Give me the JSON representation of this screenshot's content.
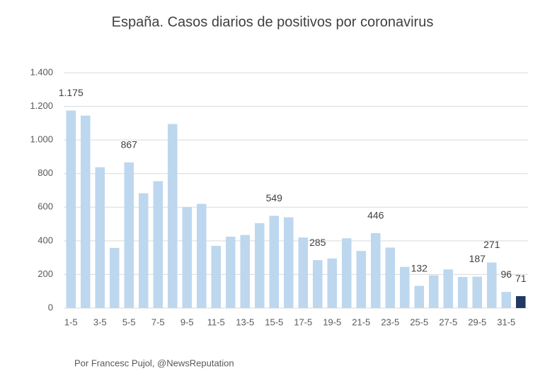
{
  "chart_data": {
    "type": "bar",
    "title": "España. Casos diarios de positivos por coronavirus",
    "footer": "Por Francesc Pujol, @NewsReputation",
    "categories": [
      "1-5",
      null,
      "3-5",
      null,
      "5-5",
      null,
      "7-5",
      null,
      "9-5",
      null,
      "11-5",
      null,
      "13-5",
      null,
      "15-5",
      null,
      "17-5",
      null,
      "19-5",
      null,
      "21-5",
      null,
      "23-5",
      null,
      "25-5",
      null,
      "27-5",
      null,
      "29-5",
      null,
      "31-5",
      null
    ],
    "values": [
      1175,
      1145,
      838,
      358,
      867,
      683,
      755,
      1095,
      600,
      620,
      370,
      425,
      435,
      505,
      549,
      540,
      420,
      285,
      295,
      415,
      340,
      446,
      360,
      245,
      132,
      195,
      230,
      185,
      187,
      271,
      96,
      71
    ],
    "value_labels": [
      "1.175",
      null,
      null,
      null,
      "867",
      null,
      null,
      null,
      null,
      null,
      null,
      null,
      null,
      null,
      "549",
      null,
      null,
      "285",
      null,
      null,
      null,
      "446",
      null,
      null,
      "132",
      null,
      null,
      null,
      "187",
      "271",
      "96",
      "71"
    ],
    "colors": [
      "#bdd7ee",
      "#bdd7ee",
      "#bdd7ee",
      "#bdd7ee",
      "#bdd7ee",
      "#bdd7ee",
      "#bdd7ee",
      "#bdd7ee",
      "#bdd7ee",
      "#bdd7ee",
      "#bdd7ee",
      "#bdd7ee",
      "#bdd7ee",
      "#bdd7ee",
      "#bdd7ee",
      "#bdd7ee",
      "#bdd7ee",
      "#bdd7ee",
      "#bdd7ee",
      "#bdd7ee",
      "#bdd7ee",
      "#bdd7ee",
      "#bdd7ee",
      "#bdd7ee",
      "#bdd7ee",
      "#bdd7ee",
      "#bdd7ee",
      "#bdd7ee",
      "#bdd7ee",
      "#bdd7ee",
      "#bdd7ee",
      "#1f3864"
    ],
    "ylim": [
      0,
      1400
    ],
    "yticks": [
      0,
      200,
      400,
      600,
      800,
      {
        "value": 1000,
        "label": "1.000"
      },
      {
        "value": 1200,
        "label": "1.200"
      },
      {
        "value": 1400,
        "label": "1.400"
      }
    ],
    "grid": true
  }
}
